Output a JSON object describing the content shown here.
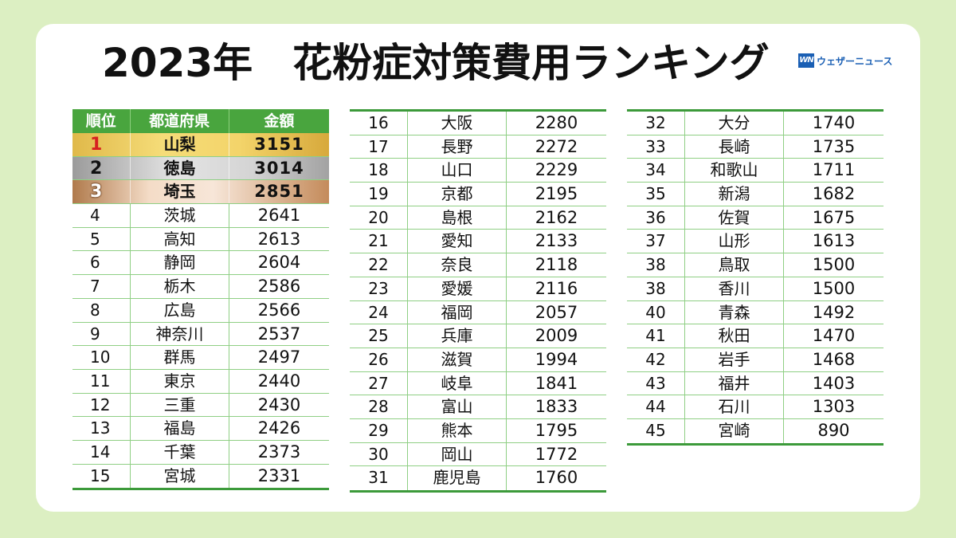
{
  "title": "2023年　花粉症対策費用ランキング",
  "logo": {
    "mark": "WN",
    "text": "ウェザーニュース"
  },
  "header": {
    "rank": "順位",
    "prefecture": "都道府県",
    "amount": "金額"
  },
  "columns": [
    [
      {
        "rank": "1",
        "pref": "山梨",
        "value": "3151"
      },
      {
        "rank": "2",
        "pref": "徳島",
        "value": "3014"
      },
      {
        "rank": "3",
        "pref": "埼玉",
        "value": "2851"
      },
      {
        "rank": "4",
        "pref": "茨城",
        "value": "2641"
      },
      {
        "rank": "5",
        "pref": "高知",
        "value": "2613"
      },
      {
        "rank": "6",
        "pref": "静岡",
        "value": "2604"
      },
      {
        "rank": "7",
        "pref": "栃木",
        "value": "2586"
      },
      {
        "rank": "8",
        "pref": "広島",
        "value": "2566"
      },
      {
        "rank": "9",
        "pref": "神奈川",
        "value": "2537"
      },
      {
        "rank": "10",
        "pref": "群馬",
        "value": "2497"
      },
      {
        "rank": "11",
        "pref": "東京",
        "value": "2440"
      },
      {
        "rank": "12",
        "pref": "三重",
        "value": "2430"
      },
      {
        "rank": "13",
        "pref": "福島",
        "value": "2426"
      },
      {
        "rank": "14",
        "pref": "千葉",
        "value": "2373"
      },
      {
        "rank": "15",
        "pref": "宮城",
        "value": "2331"
      }
    ],
    [
      {
        "rank": "16",
        "pref": "大阪",
        "value": "2280"
      },
      {
        "rank": "17",
        "pref": "長野",
        "value": "2272"
      },
      {
        "rank": "18",
        "pref": "山口",
        "value": "2229"
      },
      {
        "rank": "19",
        "pref": "京都",
        "value": "2195"
      },
      {
        "rank": "20",
        "pref": "島根",
        "value": "2162"
      },
      {
        "rank": "21",
        "pref": "愛知",
        "value": "2133"
      },
      {
        "rank": "22",
        "pref": "奈良",
        "value": "2118"
      },
      {
        "rank": "23",
        "pref": "愛媛",
        "value": "2116"
      },
      {
        "rank": "24",
        "pref": "福岡",
        "value": "2057"
      },
      {
        "rank": "25",
        "pref": "兵庫",
        "value": "2009"
      },
      {
        "rank": "26",
        "pref": "滋賀",
        "value": "1994"
      },
      {
        "rank": "27",
        "pref": "岐阜",
        "value": "1841"
      },
      {
        "rank": "28",
        "pref": "富山",
        "value": "1833"
      },
      {
        "rank": "29",
        "pref": "熊本",
        "value": "1795"
      },
      {
        "rank": "30",
        "pref": "岡山",
        "value": "1772"
      },
      {
        "rank": "31",
        "pref": "鹿児島",
        "value": "1760"
      }
    ],
    [
      {
        "rank": "32",
        "pref": "大分",
        "value": "1740"
      },
      {
        "rank": "33",
        "pref": "長崎",
        "value": "1735"
      },
      {
        "rank": "34",
        "pref": "和歌山",
        "value": "1711"
      },
      {
        "rank": "35",
        "pref": "新潟",
        "value": "1682"
      },
      {
        "rank": "36",
        "pref": "佐賀",
        "value": "1675"
      },
      {
        "rank": "37",
        "pref": "山形",
        "value": "1613"
      },
      {
        "rank": "38",
        "pref": "鳥取",
        "value": "1500"
      },
      {
        "rank": "38",
        "pref": "香川",
        "value": "1500"
      },
      {
        "rank": "40",
        "pref": "青森",
        "value": "1492"
      },
      {
        "rank": "41",
        "pref": "秋田",
        "value": "1470"
      },
      {
        "rank": "42",
        "pref": "岩手",
        "value": "1468"
      },
      {
        "rank": "43",
        "pref": "福井",
        "value": "1403"
      },
      {
        "rank": "44",
        "pref": "石川",
        "value": "1303"
      },
      {
        "rank": "45",
        "pref": "宮崎",
        "value": "890"
      }
    ]
  ],
  "colors": {
    "header_green": "#49a53e",
    "rule_green": "#3c9a3a",
    "background": "#dcefc2",
    "logo_blue": "#1a5fb4"
  }
}
